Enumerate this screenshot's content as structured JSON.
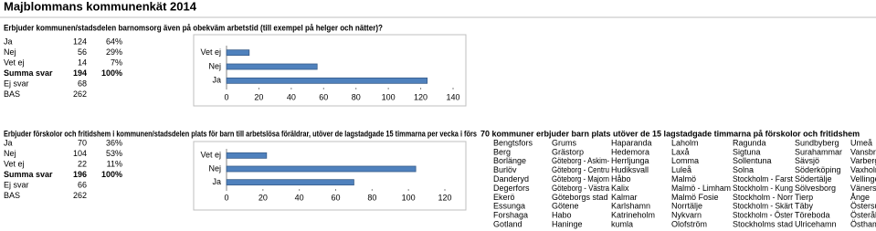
{
  "header": {
    "title": "Majblommans kommunenkät 2014"
  },
  "sections": [
    {
      "question": "Erbjuder kommunen/stadsdelen barnomsorg även på obekväm arbetstid (till exempel på helger och nätter)?",
      "table": {
        "rows": [
          [
            "Ja",
            124,
            "64%"
          ],
          [
            "Nej",
            56,
            "29%"
          ],
          [
            "Vet ej",
            14,
            "7%"
          ],
          [
            "Summa svar",
            194,
            "100%"
          ],
          [
            "Ej svar",
            68
          ],
          [
            "BAS",
            262
          ]
        ]
      }
    },
    {
      "question": "Erbjuder förskolor och fritidshem i kommunen/stadsdelen plats för barn till arbetslösa föräldrar, utöver de lagstadgade 15 timmarna per vecka i förs",
      "table": {
        "rows": [
          [
            "Ja",
            70,
            "36%"
          ],
          [
            "Nej",
            104,
            "53%"
          ],
          [
            "Vet ej",
            22,
            "11%"
          ],
          [
            "Summa svar",
            196,
            "100%"
          ],
          [
            "Ej svar",
            66
          ],
          [
            "BAS",
            262
          ]
        ]
      },
      "list": {
        "title": "70 kommuner erbjuder barn plats utöver de 15 lagstadgade timmarna på förskolor och fritidshem",
        "rows": [
          [
            "Bengtsfors",
            "Grums",
            "Haparanda",
            "Laholm",
            "Ragunda",
            "Sundbyberg",
            "Umeå"
          ],
          [
            "Berg",
            "Grästorp",
            "Hedemora",
            "Laxå",
            "Sigtuna",
            "Surahammar",
            "Vansbro"
          ],
          [
            "Borlänge",
            "Göteborg - Askim-",
            "Herrljunga",
            "Lomma",
            "Sollentuna",
            "Sävsjö",
            "Varberg"
          ],
          [
            "Burlöv",
            "Göteborg - Centru",
            "Hudiksvall",
            "Luleå",
            "Solna",
            "Söderköping",
            "Vaxholm"
          ],
          [
            "Danderyd",
            "Göteborg - Majorn",
            "Håbo",
            "Malmö",
            "Stockholm - Farst",
            "Södertälje",
            "Vellinge"
          ],
          [
            "Degerfors",
            "Göteborg - Västra",
            "Kalix",
            "Malmö - Limham",
            "Stockholm - Kung",
            "Sölvesborg",
            "Vänersborg"
          ],
          [
            "Ekerö",
            "Göteborgs stad",
            "Kalmar",
            "Malmö Fosie",
            "Stockholm - Norr",
            "Tierp",
            "Ånge"
          ],
          [
            "Essunga",
            "Götene",
            "Karlshamn",
            "Norrtälje",
            "Stockholm - Skärt",
            "Täby",
            "Östersund"
          ],
          [
            "Forshaga",
            "Habo",
            "Katrineholm",
            "Nykvarn",
            "Stockholm - Öster",
            "Töreboda",
            "Österåker"
          ],
          [
            "Gotland",
            "Haninge",
            "kumla",
            "Olofström",
            "Stockholms stad",
            "Ulricehamn",
            "Östhammar"
          ]
        ]
      }
    }
  ],
  "chart_data": [
    {
      "type": "bar",
      "orientation": "horizontal",
      "categories": [
        "Vet ej",
        "Nej",
        "Ja"
      ],
      "values": [
        14,
        56,
        124
      ],
      "color": "#4f81bd",
      "xlim": [
        0,
        140
      ],
      "xticks": [
        0,
        20,
        40,
        60,
        80,
        100,
        120,
        140
      ]
    },
    {
      "type": "bar",
      "orientation": "horizontal",
      "categories": [
        "Vet ej",
        "Nej",
        "Ja"
      ],
      "values": [
        22,
        104,
        70
      ],
      "color": "#4f81bd",
      "xlim": [
        0,
        120
      ],
      "xticks": [
        0,
        20,
        40,
        60,
        80,
        100,
        120
      ]
    }
  ]
}
